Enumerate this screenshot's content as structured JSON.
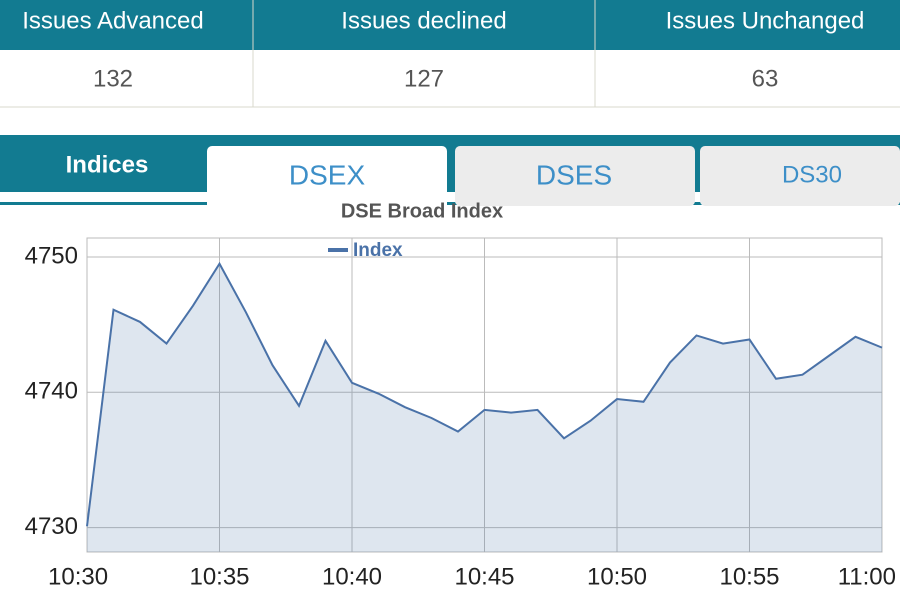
{
  "table": {
    "header": [
      "Issues Advanced",
      "Issues declined",
      "Issues Unchanged"
    ],
    "rows": [
      [
        "132",
        "127",
        "63"
      ]
    ]
  },
  "tabs": {
    "section": "Indices",
    "items": [
      "DSEX",
      "DSES",
      "DS30"
    ]
  },
  "chart_data": {
    "type": "area",
    "title": "DSE Broad Index",
    "categories": [
      "10:30",
      null,
      null,
      null,
      null,
      "10:35",
      null,
      null,
      null,
      null,
      "10:40",
      null,
      null,
      null,
      null,
      "10:45",
      null,
      null,
      null,
      null,
      "10:50",
      null,
      null,
      null,
      null,
      "10:55",
      null,
      null,
      null,
      null,
      "11:00"
    ],
    "series": [
      {
        "name": "Index",
        "color": "#4a72a8",
        "values": [
          4730.1,
          4746.1,
          4745.2,
          4743.6,
          4746.4,
          4749.5,
          4745.9,
          4742.0,
          4739.0,
          4743.8,
          4740.7,
          4739.9,
          4738.9,
          4738.1,
          4737.1,
          4738.7,
          4738.5,
          4738.7,
          4736.6,
          4737.9,
          4739.5,
          4739.3,
          4742.2,
          4744.2,
          4743.6,
          4743.9,
          4741.0,
          4741.3,
          4742.7,
          4744.1,
          4743.3
        ]
      }
    ],
    "ylim": [
      4728.2,
      4751.4
    ],
    "yticks": [
      4730,
      4740,
      4750
    ],
    "grid": true
  }
}
